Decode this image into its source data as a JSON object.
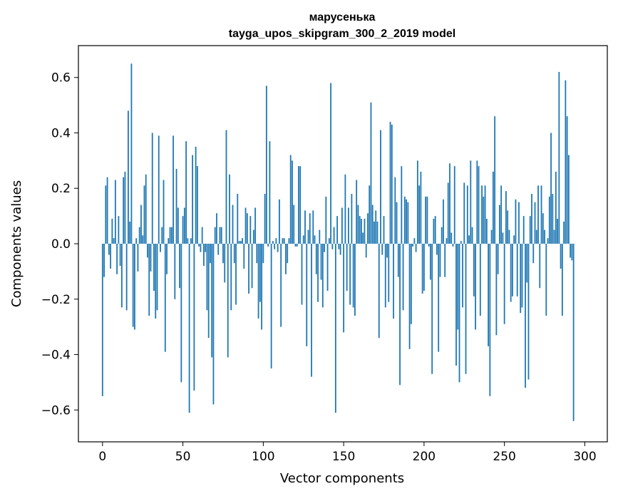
{
  "chart_data": {
    "type": "bar",
    "title": "марусенька",
    "subtitle": "tayga_upos_skipgram_300_2_2019 model",
    "xlabel": "Vector components",
    "ylabel": "Components values",
    "xlim": [
      -15,
      314
    ],
    "ylim": [
      -0.715,
      0.715
    ],
    "xticks": [
      0,
      50,
      100,
      150,
      200,
      250,
      300
    ],
    "yticks": [
      -0.6,
      -0.4,
      -0.2,
      0.0,
      0.2,
      0.4,
      0.6
    ],
    "ytick_labels": [
      "−0.6",
      "−0.4",
      "−0.2",
      "0.0",
      "0.2",
      "0.4",
      "0.6"
    ],
    "bar_color": "#1f77b4",
    "grid": false,
    "values": [
      -0.55,
      -0.12,
      0.21,
      0.24,
      -0.04,
      -0.09,
      0.09,
      0.02,
      0.23,
      -0.11,
      0.1,
      -0.08,
      -0.23,
      0.24,
      0.26,
      -0.24,
      0.48,
      0.08,
      0.65,
      -0.3,
      -0.31,
      0.02,
      -0.1,
      0.06,
      0.14,
      0.03,
      0.21,
      0.25,
      -0.05,
      -0.26,
      -0.1,
      0.4,
      -0.17,
      -0.27,
      -0.24,
      0.39,
      -0.03,
      0.06,
      0.23,
      -0.39,
      -0.11,
      0.02,
      0.06,
      0.06,
      0.39,
      -0.2,
      0.27,
      0.13,
      -0.16,
      -0.5,
      0.1,
      0.13,
      0.37,
      0.02,
      -0.61,
      0.02,
      0.32,
      -0.53,
      0.35,
      0.28,
      -0.01,
      -0.03,
      0.06,
      -0.08,
      -0.03,
      -0.24,
      -0.34,
      -0.07,
      -0.41,
      -0.58,
      0.06,
      0.11,
      -0.04,
      0.06,
      0.06,
      -0.07,
      -0.14,
      0.41,
      -0.41,
      0.25,
      -0.24,
      0.14,
      -0.07,
      -0.22,
      0.18,
      0.01,
      0.01,
      0.02,
      -0.09,
      0.13,
      0.11,
      -0.18,
      0.1,
      -0.16,
      0.05,
      0.13,
      -0.07,
      -0.27,
      -0.21,
      -0.31,
      -0.07,
      0.18,
      0.57,
      -0.01,
      0.37,
      -0.45,
      0.01,
      -0.02,
      0.02,
      -0.03,
      0.16,
      -0.3,
      0.02,
      0.02,
      -0.11,
      -0.07,
      0.02,
      0.32,
      0.3,
      0.14,
      -0.01,
      -0.01,
      0.28,
      0.28,
      -0.22,
      0.03,
      0.12,
      -0.37,
      0.05,
      0.11,
      -0.48,
      0.12,
      0.03,
      -0.11,
      -0.21,
      0.05,
      -0.13,
      -0.23,
      -0.03,
      0.17,
      -0.17,
      0.02,
      0.58,
      -0.02,
      0.06,
      -0.61,
      0.1,
      -0.02,
      -0.04,
      0.13,
      -0.32,
      0.25,
      -0.17,
      0.13,
      -0.22,
      0.18,
      -0.23,
      -0.26,
      0.23,
      0.14,
      0.1,
      0.09,
      0.04,
      0.09,
      -0.05,
      0.11,
      0.21,
      0.51,
      0.14,
      0.08,
      0.12,
      0.08,
      -0.34,
      0.41,
      -0.04,
      0.1,
      -0.23,
      -0.05,
      -0.21,
      0.44,
      0.43,
      -0.27,
      0.24,
      0.15,
      -0.12,
      -0.51,
      0.28,
      -0.24,
      0.17,
      0.16,
      0.15,
      -0.38,
      -0.29,
      -0.01,
      0.02,
      -0.03,
      0.3,
      0.21,
      0.26,
      -0.18,
      -0.17,
      0.17,
      0.17,
      -0.01,
      -0.13,
      -0.47,
      0.09,
      0.1,
      -0.04,
      -0.39,
      -0.12,
      0.06,
      0.16,
      -0.12,
      0.02,
      0.22,
      0.29,
      0.04,
      -0.01,
      0.28,
      -0.44,
      -0.31,
      -0.5,
      0.01,
      -0.23,
      0.22,
      -0.47,
      0.21,
      0.03,
      0.3,
      0.06,
      -0.19,
      -0.31,
      0.3,
      0.28,
      -0.26,
      0.21,
      0.17,
      0.21,
      0.09,
      -0.37,
      -0.55,
      0.05,
      0.26,
      0.46,
      -0.33,
      -0.11,
      0.14,
      0.21,
      0.04,
      -0.29,
      0.19,
      0.12,
      0.05,
      -0.21,
      -0.19,
      0.03,
      0.16,
      -0.19,
      0.15,
      -0.25,
      -0.23,
      0.1,
      -0.52,
      -0.14,
      -0.49,
      0.1,
      0.18,
      -0.07,
      0.15,
      0.05,
      0.21,
      -0.16,
      0.21,
      0.11,
      0.05,
      -0.26,
      0.02,
      0.17,
      0.4,
      0.18,
      0.05,
      0.26,
      0.09,
      0.62,
      -0.09,
      -0.26,
      0.08,
      0.59,
      0.46,
      0.32,
      -0.05,
      -0.06,
      -0.64
    ]
  }
}
